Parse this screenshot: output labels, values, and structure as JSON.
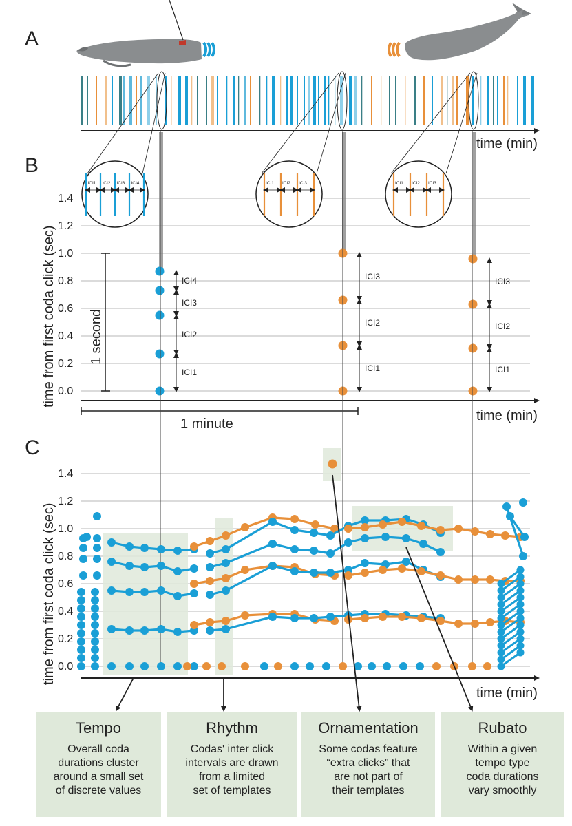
{
  "panels": {
    "a": "A",
    "b": "B",
    "c": "C"
  },
  "axes": {
    "time_label": "time (min)",
    "y_label": "time from first coda click (sec)",
    "y_ticks": [
      "0.0",
      "0.2",
      "0.4",
      "0.6",
      "0.8",
      "1.0",
      "1.2",
      "1.4"
    ]
  },
  "scale_bars": {
    "second": "1 second",
    "minute": "1 minute"
  },
  "ici_labels": [
    "ICI1",
    "ICI2",
    "ICI3",
    "ICI4"
  ],
  "colors": {
    "blue": "#1a9fd6",
    "orange": "#e8903a",
    "box": "#dfe9da",
    "teal": "#3a7f86"
  },
  "panel_b_codas": [
    {
      "whale": "blue",
      "clicks": [
        0.0,
        0.27,
        0.55,
        0.73,
        0.87
      ],
      "icis": [
        "ICI1",
        "ICI2",
        "ICI3",
        "ICI4"
      ]
    },
    {
      "whale": "orange",
      "clicks": [
        0.0,
        0.33,
        0.66,
        1.0
      ],
      "icis": [
        "ICI1",
        "ICI2",
        "ICI3"
      ]
    },
    {
      "whale": "orange",
      "clicks": [
        0.0,
        0.31,
        0.63,
        0.96
      ],
      "icis": [
        "ICI1",
        "ICI2",
        "ICI3"
      ]
    }
  ],
  "callouts": [
    {
      "title": "Tempo",
      "lines": [
        "Overall coda",
        "durations cluster",
        "around a small set",
        "of discrete values"
      ]
    },
    {
      "title": "Rhythm",
      "lines": [
        "Codas' inter click",
        "intervals are drawn",
        "from a limited",
        "set of templates"
      ]
    },
    {
      "title": "Ornamentation",
      "lines": [
        "Some codas feature",
        "“extra clicks” that",
        "are not part of",
        "their templates"
      ]
    },
    {
      "title": "Rubato",
      "lines": [
        "Within a given",
        "tempo type",
        "coda durations",
        "vary smoothly"
      ]
    }
  ]
}
